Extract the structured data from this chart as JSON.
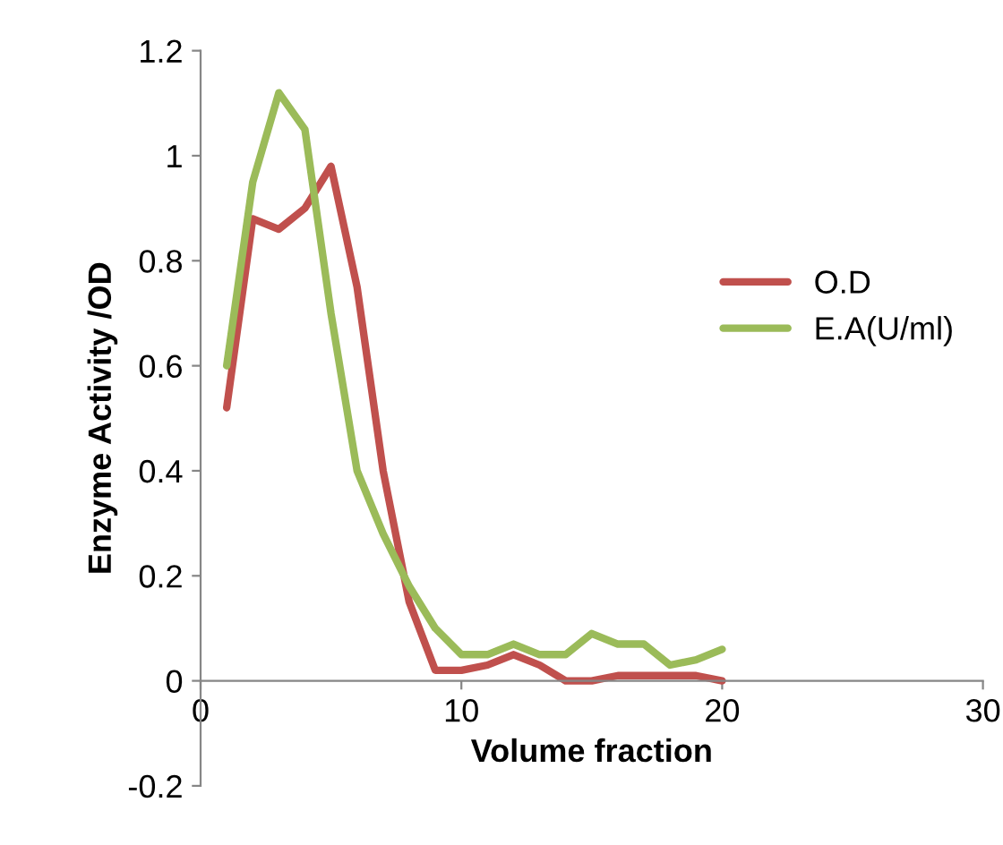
{
  "chart_data": {
    "type": "line",
    "xlabel": "Volume fraction",
    "ylabel": "Enzyme Activity /OD",
    "x": [
      1,
      2,
      3,
      4,
      5,
      6,
      7,
      8,
      9,
      10,
      11,
      12,
      13,
      14,
      15,
      16,
      17,
      18,
      19,
      20
    ],
    "series": [
      {
        "name": "O.D",
        "color": "#c0504d",
        "values": [
          0.52,
          0.88,
          0.86,
          0.9,
          0.98,
          0.75,
          0.4,
          0.15,
          0.02,
          0.02,
          0.03,
          0.05,
          0.03,
          0.0,
          0.0,
          0.01,
          0.01,
          0.01,
          0.01,
          0.0
        ]
      },
      {
        "name": "E.A(U/ml)",
        "color": "#9bbb59",
        "values": [
          0.6,
          0.95,
          1.12,
          1.05,
          0.7,
          0.4,
          0.28,
          0.18,
          0.1,
          0.05,
          0.05,
          0.07,
          0.05,
          0.05,
          0.09,
          0.07,
          0.07,
          0.03,
          0.04,
          0.06
        ]
      }
    ],
    "xlim": [
      0,
      30
    ],
    "xticks": [
      0,
      10,
      20,
      30
    ],
    "ylim": [
      -0.2,
      1.2
    ],
    "yticks": [
      -0.2,
      0,
      0.2,
      0.4,
      0.6,
      0.8,
      1,
      1.2
    ],
    "grid": false,
    "legend": "right",
    "marker": "none",
    "line_style": "solid"
  }
}
